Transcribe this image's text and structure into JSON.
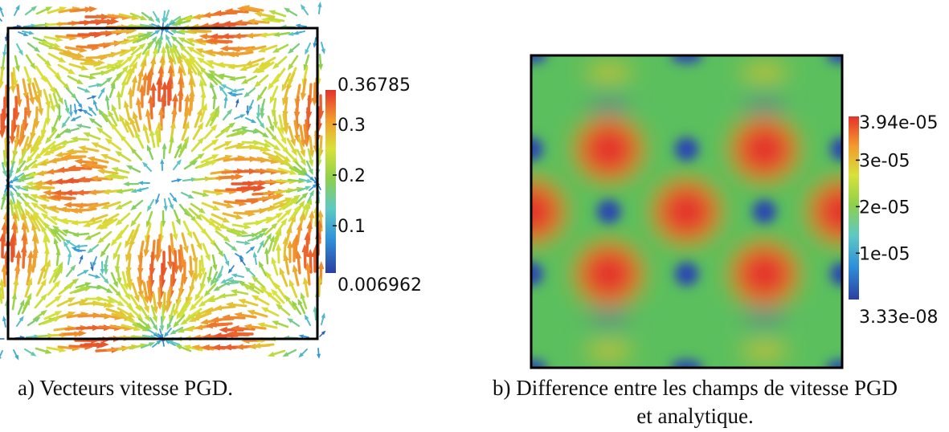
{
  "figure": {
    "panel_a": {
      "colorbar": {
        "max_label": "0.36785",
        "ticks": [
          "0.3",
          "0.2",
          "0.1"
        ],
        "min_label": "0.006962",
        "range": [
          0.006962,
          0.36785
        ],
        "tick_values": [
          0.3,
          0.2,
          0.1
        ]
      },
      "caption": "a) Vecteurs vitesse PGD."
    },
    "panel_b": {
      "colorbar": {
        "max_label": "3.94e-05",
        "ticks": [
          "3e-05",
          "2e-05",
          "1e-05"
        ],
        "min_label": "3.33e-08",
        "range": [
          3.33e-08,
          3.94e-05
        ],
        "tick_values": [
          3e-05,
          2e-05,
          1e-05
        ]
      },
      "caption_line1": "b) Difference entre les champs de vitesse PGD",
      "caption_line2": "et analytique."
    },
    "colormap": [
      "#2b3fa0",
      "#2f8fd8",
      "#5ec9c4",
      "#8fd04a",
      "#d8e23a",
      "#f29a2e",
      "#e4322a"
    ]
  }
}
